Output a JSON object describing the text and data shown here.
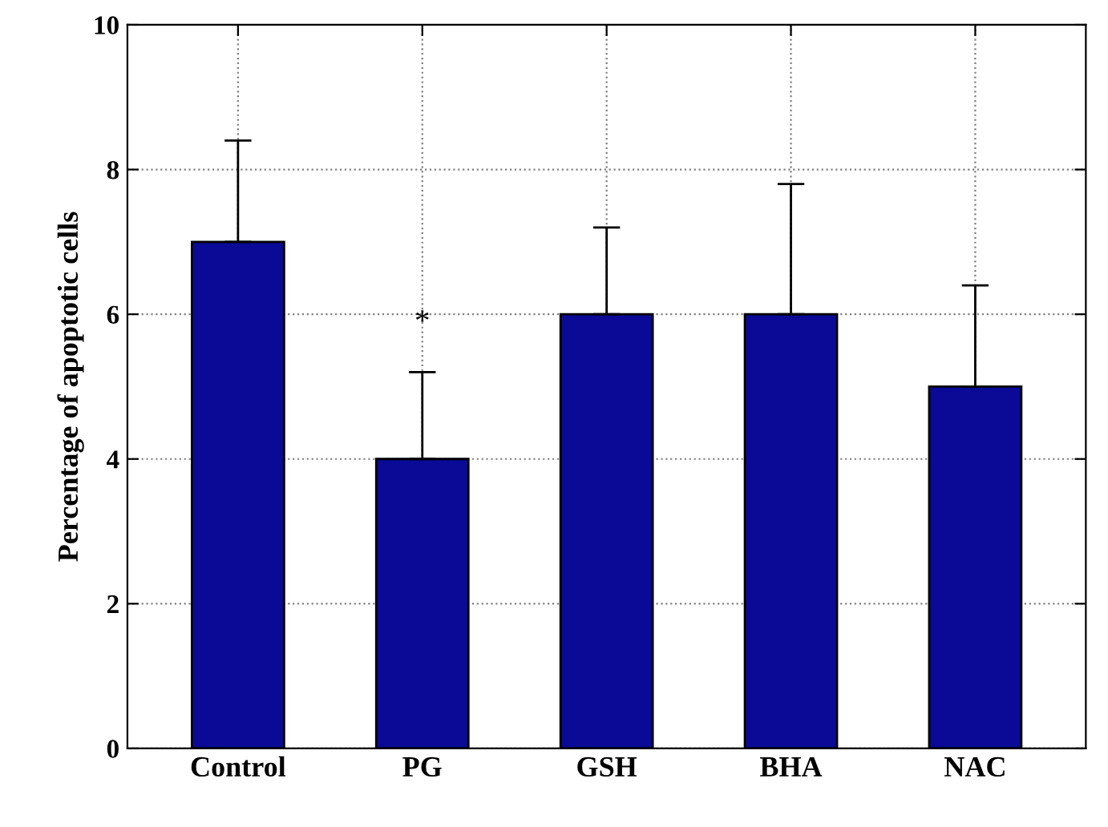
{
  "chart_data": {
    "type": "bar",
    "ylabel": "Percentage of apoptotic cells",
    "categories": [
      "Control",
      "PG",
      "GSH",
      "BHA",
      "NAC"
    ],
    "values": [
      7,
      4,
      6,
      6,
      5
    ],
    "errors": [
      [
        7,
        8.4
      ],
      [
        4,
        5.2
      ],
      [
        6,
        7.2
      ],
      [
        6,
        7.8
      ],
      [
        5,
        6.4
      ]
    ],
    "color": "#0a0a96",
    "ylim": [
      0,
      10
    ],
    "yticks": [
      0,
      2,
      4,
      6,
      8,
      10
    ],
    "grid": true,
    "annotations": [
      "*"
    ]
  }
}
